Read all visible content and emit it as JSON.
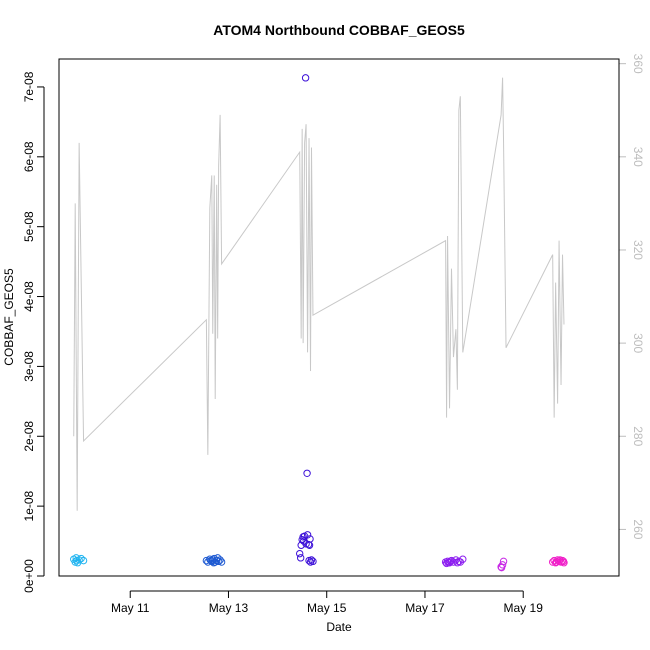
{
  "chart_data": {
    "type": "scatter",
    "title": "ATOM4 Northbound COBBAF_GEOS5",
    "xlabel": "Date",
    "ylabel": "COBBAF_GEOS5",
    "xlim_days": [
      9.55,
      20.95
    ],
    "ylim": [
      0,
      7.4e-08
    ],
    "x_ticks": [
      {
        "value": 11,
        "label": "May 11"
      },
      {
        "value": 13,
        "label": "May 13"
      },
      {
        "value": 15,
        "label": "May 15"
      },
      {
        "value": 17,
        "label": "May 17"
      },
      {
        "value": 19,
        "label": "May 19"
      }
    ],
    "y_ticks": [
      {
        "value": 0,
        "label": "0e+00"
      },
      {
        "value": 1e-08,
        "label": "1e-08"
      },
      {
        "value": 2e-08,
        "label": "2e-08"
      },
      {
        "value": 3e-08,
        "label": "3e-08"
      },
      {
        "value": 4e-08,
        "label": "4e-08"
      },
      {
        "value": 5e-08,
        "label": "5e-08"
      },
      {
        "value": 6e-08,
        "label": "6e-08"
      },
      {
        "value": 7e-08,
        "label": "7e-08"
      }
    ],
    "y2lim": [
      250,
      361
    ],
    "y2_ticks": [
      260,
      280,
      300,
      320,
      340,
      360
    ],
    "line_color": "#c8c8c8",
    "line_series": [
      [
        9.85,
        280
      ],
      [
        9.88,
        330
      ],
      [
        9.92,
        264
      ],
      [
        9.96,
        343
      ],
      [
        10.05,
        279
      ],
      [
        12.55,
        305
      ],
      [
        12.58,
        276
      ],
      [
        12.62,
        329
      ],
      [
        12.66,
        336
      ],
      [
        12.68,
        302
      ],
      [
        12.71,
        336
      ],
      [
        12.73,
        288
      ],
      [
        12.76,
        334
      ],
      [
        12.78,
        301
      ],
      [
        12.8,
        338
      ],
      [
        12.83,
        349
      ],
      [
        12.86,
        317
      ],
      [
        14.45,
        341
      ],
      [
        14.48,
        301
      ],
      [
        14.5,
        346
      ],
      [
        14.52,
        300
      ],
      [
        14.55,
        343
      ],
      [
        14.58,
        347
      ],
      [
        14.61,
        298
      ],
      [
        14.64,
        344
      ],
      [
        14.67,
        294
      ],
      [
        14.69,
        342
      ],
      [
        14.72,
        306
      ],
      [
        17.42,
        322
      ],
      [
        17.44,
        284
      ],
      [
        17.46,
        323
      ],
      [
        17.5,
        286
      ],
      [
        17.54,
        316
      ],
      [
        17.58,
        297
      ],
      [
        17.63,
        303
      ],
      [
        17.66,
        290
      ],
      [
        17.69,
        350
      ],
      [
        17.72,
        353
      ],
      [
        17.77,
        298
      ],
      [
        18.55,
        349
      ],
      [
        18.58,
        357
      ],
      [
        18.6,
        343
      ],
      [
        18.65,
        299
      ],
      [
        19.6,
        319
      ],
      [
        19.63,
        284
      ],
      [
        19.66,
        313
      ],
      [
        19.7,
        287
      ],
      [
        19.73,
        322
      ],
      [
        19.77,
        291
      ],
      [
        19.8,
        319
      ],
      [
        19.83,
        304
      ]
    ],
    "point_groups": [
      {
        "color": "#20b4f0",
        "points": [
          [
            9.85,
            2.4e-09
          ],
          [
            9.88,
            2e-09
          ],
          [
            9.9,
            2.6e-09
          ],
          [
            9.93,
            1.9e-09
          ],
          [
            9.96,
            2.3e-09
          ],
          [
            10.0,
            2.5e-09
          ],
          [
            10.05,
            2.2e-09
          ],
          [
            9.91,
            2.2e-09
          ]
        ]
      },
      {
        "color": "#1e5ad2",
        "points": [
          [
            12.55,
            2.2e-09
          ],
          [
            12.58,
            2e-09
          ],
          [
            12.62,
            2.4e-09
          ],
          [
            12.66,
            2.1e-09
          ],
          [
            12.68,
            2.3e-09
          ],
          [
            12.71,
            2.5e-09
          ],
          [
            12.73,
            2e-09
          ],
          [
            12.76,
            2.2e-09
          ],
          [
            12.78,
            2.6e-09
          ],
          [
            12.8,
            2.1e-09
          ],
          [
            12.83,
            2.3e-09
          ],
          [
            12.86,
            2e-09
          ],
          [
            12.64,
            2.2e-09
          ],
          [
            12.7,
            1.9e-09
          ]
        ]
      },
      {
        "color": "#3c10d8",
        "points": [
          [
            14.45,
            3.2e-09
          ],
          [
            14.48,
            4.4e-09
          ],
          [
            14.5,
            5.2e-09
          ],
          [
            14.52,
            5.6e-09
          ],
          [
            14.55,
            5.7e-09
          ],
          [
            14.57,
            7.13e-08
          ],
          [
            14.58,
            4.6e-09
          ],
          [
            14.6,
            1.47e-08
          ],
          [
            14.61,
            5.9e-09
          ],
          [
            14.63,
            4.5e-09
          ],
          [
            14.64,
            2.2e-09
          ],
          [
            14.66,
            5.3e-09
          ],
          [
            14.67,
            2e-09
          ],
          [
            14.69,
            2.3e-09
          ],
          [
            14.72,
            2.1e-09
          ],
          [
            14.47,
            2.6e-09
          ],
          [
            14.53,
            5e-09
          ],
          [
            14.65,
            4.4e-09
          ]
        ]
      },
      {
        "color": "#8c1ef0",
        "points": [
          [
            17.42,
            2e-09
          ],
          [
            17.44,
            1.8e-09
          ],
          [
            17.46,
            2.1e-09
          ],
          [
            17.5,
            1.9e-09
          ],
          [
            17.54,
            2.2e-09
          ],
          [
            17.58,
            2e-09
          ],
          [
            17.63,
            2.3e-09
          ],
          [
            17.66,
            1.9e-09
          ],
          [
            17.69,
            2.1e-09
          ],
          [
            17.72,
            2e-09
          ],
          [
            17.77,
            2.4e-09
          ],
          [
            17.48,
            1.9e-09
          ],
          [
            17.52,
            2.1e-09
          ]
        ]
      },
      {
        "color": "#c828e6",
        "points": [
          [
            18.55,
            1.3e-09
          ],
          [
            18.58,
            1.6e-09
          ],
          [
            18.6,
            2.1e-09
          ],
          [
            18.56,
            1.2e-09
          ]
        ]
      },
      {
        "color": "#f01ec8",
        "points": [
          [
            19.6,
            2e-09
          ],
          [
            19.63,
            2.2e-09
          ],
          [
            19.66,
            1.9e-09
          ],
          [
            19.7,
            2.3e-09
          ],
          [
            19.73,
            2.1e-09
          ],
          [
            19.77,
            2e-09
          ],
          [
            19.8,
            2.2e-09
          ],
          [
            19.83,
            1.9e-09
          ],
          [
            19.68,
            2e-09
          ],
          [
            19.75,
            2.3e-09
          ],
          [
            19.82,
            2.1e-09
          ]
        ]
      }
    ]
  }
}
